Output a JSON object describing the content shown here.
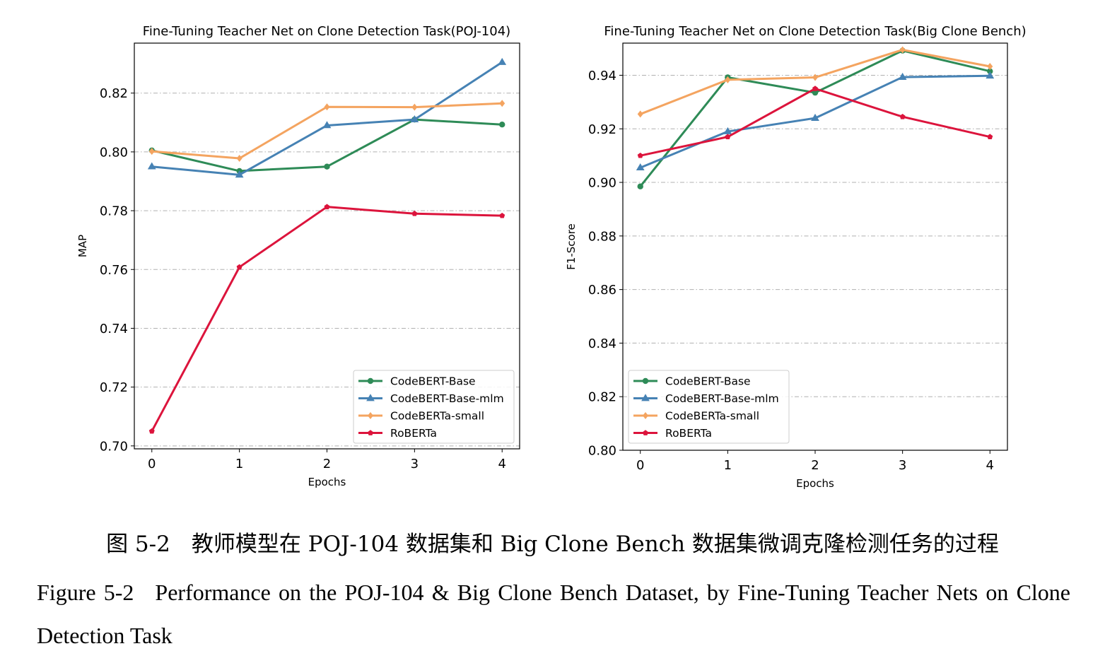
{
  "chart_data": [
    {
      "type": "line",
      "title": "Fine-Tuning Teacher Net on Clone Detection Task(POJ-104)",
      "xlabel": "Epochs",
      "ylabel": "MAP",
      "x": [
        0,
        1,
        2,
        3,
        4
      ],
      "xticks": [
        "0",
        "1",
        "2",
        "3",
        "4"
      ],
      "xlim": [
        -0.2,
        4.2
      ],
      "ylim": [
        0.699,
        0.837
      ],
      "yticks": [
        "0.70",
        "0.72",
        "0.74",
        "0.76",
        "0.78",
        "0.80",
        "0.82"
      ],
      "grid": "horizontal dash-dot",
      "legend_position": "lower-right",
      "series": [
        {
          "name": "CodeBERT-Base",
          "color": "#2e8b57",
          "marker": "circle",
          "values": [
            0.8005,
            0.7935,
            0.795,
            0.811,
            0.8093
          ]
        },
        {
          "name": "CodeBERT-Base-mlm",
          "color": "#4682b4",
          "marker": "triangle",
          "values": [
            0.795,
            0.7922,
            0.809,
            0.811,
            0.8305
          ]
        },
        {
          "name": "CodeBERTa-small",
          "color": "#f4a460",
          "marker": "diamond",
          "values": [
            0.8002,
            0.7978,
            0.8153,
            0.8152,
            0.8165
          ]
        },
        {
          "name": "RoBERTa",
          "color": "#dc143c",
          "marker": "pentagon",
          "values": [
            0.705,
            0.7608,
            0.7813,
            0.779,
            0.7783
          ]
        }
      ]
    },
    {
      "type": "line",
      "title": "Fine-Tuning Teacher Net on Clone Detection Task(Big Clone Bench)",
      "xlabel": "Epochs",
      "ylabel": "F1-Score",
      "x": [
        0,
        1,
        2,
        3,
        4
      ],
      "xticks": [
        "0",
        "1",
        "2",
        "3",
        "4"
      ],
      "xlim": [
        -0.2,
        4.2
      ],
      "ylim": [
        0.8,
        0.952
      ],
      "yticks": [
        "0.80",
        "0.82",
        "0.84",
        "0.86",
        "0.88",
        "0.90",
        "0.92",
        "0.94"
      ],
      "grid": "horizontal dash-dot",
      "legend_position": "lower-left",
      "series": [
        {
          "name": "CodeBERT-Base",
          "color": "#2e8b57",
          "marker": "circle",
          "values": [
            0.8985,
            0.9392,
            0.9335,
            0.9492,
            0.9415
          ]
        },
        {
          "name": "CodeBERT-Base-mlm",
          "color": "#4682b4",
          "marker": "triangle",
          "values": [
            0.9055,
            0.919,
            0.924,
            0.9393,
            0.9398
          ]
        },
        {
          "name": "CodeBERTa-small",
          "color": "#f4a460",
          "marker": "diamond",
          "values": [
            0.9255,
            0.9383,
            0.9392,
            0.9495,
            0.9433
          ]
        },
        {
          "name": "RoBERTa",
          "color": "#dc143c",
          "marker": "pentagon",
          "values": [
            0.91,
            0.917,
            0.935,
            0.9245,
            0.917
          ]
        }
      ]
    }
  ],
  "caption": {
    "cn_label": "图 5-2",
    "cn_text": "教师模型在 POJ-104 数据集和 Big Clone Bench 数据集微调克隆检测任务的过程",
    "en_label": "Figure 5-2",
    "en_text": "Performance on the POJ-104 & Big Clone Bench Dataset, by Fine-Tuning Teacher Nets on Clone Detection Task"
  }
}
